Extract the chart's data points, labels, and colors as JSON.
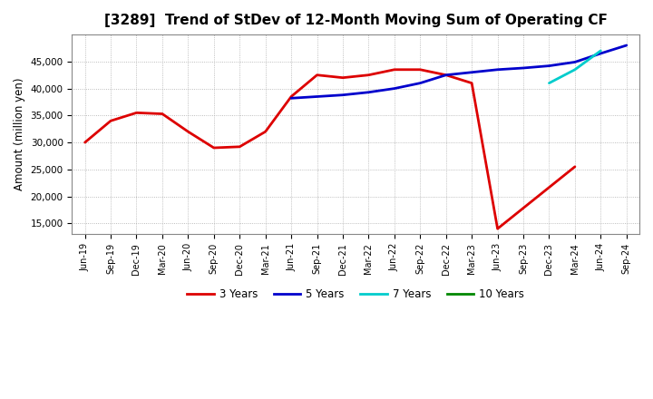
{
  "title": "[3289]  Trend of StDev of 12-Month Moving Sum of Operating CF",
  "ylabel": "Amount (million yen)",
  "background_color": "#ffffff",
  "grid_color": "#aaaaaa",
  "title_fontsize": 11,
  "tick_labels": [
    "Jun-19",
    "Sep-19",
    "Dec-19",
    "Mar-20",
    "Jun-20",
    "Sep-20",
    "Dec-20",
    "Mar-21",
    "Jun-21",
    "Sep-21",
    "Dec-21",
    "Mar-22",
    "Jun-22",
    "Sep-22",
    "Dec-22",
    "Mar-23",
    "Jun-23",
    "Sep-23",
    "Dec-23",
    "Mar-24",
    "Jun-24",
    "Sep-24"
  ],
  "series": {
    "3 Years": {
      "color": "#dd0000",
      "values": [
        30000,
        34000,
        35500,
        35300,
        32000,
        29000,
        29200,
        32000,
        38500,
        42500,
        42000,
        42500,
        43500,
        43500,
        42500,
        41000,
        14000,
        null,
        null,
        25500,
        null,
        null
      ]
    },
    "5 Years": {
      "color": "#0000cc",
      "values": [
        null,
        null,
        null,
        null,
        null,
        null,
        null,
        null,
        38200,
        38500,
        38800,
        39300,
        40000,
        41000,
        42500,
        43000,
        43500,
        43800,
        44200,
        44900,
        46500,
        48000
      ]
    },
    "7 Years": {
      "color": "#00cccc",
      "values": [
        null,
        null,
        null,
        null,
        null,
        null,
        null,
        null,
        null,
        null,
        null,
        null,
        null,
        null,
        null,
        null,
        null,
        null,
        41000,
        43500,
        47000,
        null
      ]
    },
    "10 Years": {
      "color": "#008800",
      "values": [
        null,
        null,
        null,
        null,
        null,
        null,
        null,
        null,
        null,
        null,
        null,
        null,
        null,
        null,
        null,
        null,
        null,
        null,
        null,
        null,
        null,
        null
      ]
    }
  },
  "ylim": [
    13000,
    50000
  ],
  "yticks": [
    15000,
    20000,
    25000,
    30000,
    35000,
    40000,
    45000
  ],
  "legend_entries": [
    "3 Years",
    "5 Years",
    "7 Years",
    "10 Years"
  ],
  "legend_colors": [
    "#dd0000",
    "#0000cc",
    "#00cccc",
    "#008800"
  ]
}
